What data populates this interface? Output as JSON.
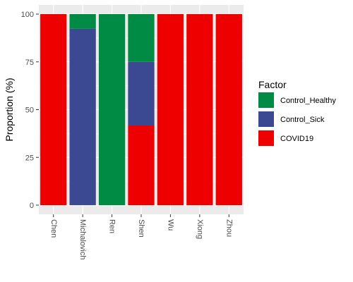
{
  "chart_data": {
    "type": "bar",
    "stacked": true,
    "categories": [
      "Chen",
      "Michalovich",
      "Ren",
      "Shen",
      "Wu",
      "Xiong",
      "Zhou"
    ],
    "series": [
      {
        "name": "COVID19",
        "color": "#ee0000",
        "values": [
          100,
          0,
          0,
          41.7,
          100,
          100,
          100
        ]
      },
      {
        "name": "Control_Sick",
        "color": "#3b4992",
        "values": [
          0,
          92.3,
          0,
          33.3,
          0,
          0,
          0
        ]
      },
      {
        "name": "Control_Healthy",
        "color": "#008b45",
        "values": [
          0,
          7.7,
          100,
          25,
          0,
          0,
          0
        ]
      }
    ],
    "ylabel": "Proportion (%)",
    "xlabel": "",
    "ylim": [
      0,
      100
    ],
    "yticks": [
      0,
      25,
      50,
      75,
      100
    ],
    "grid": true,
    "panel_color": "#ebebeb",
    "legend": {
      "title": "Factor",
      "placement": "right",
      "entries": [
        "Control_Healthy",
        "Control_Sick",
        "COVID19"
      ]
    }
  }
}
